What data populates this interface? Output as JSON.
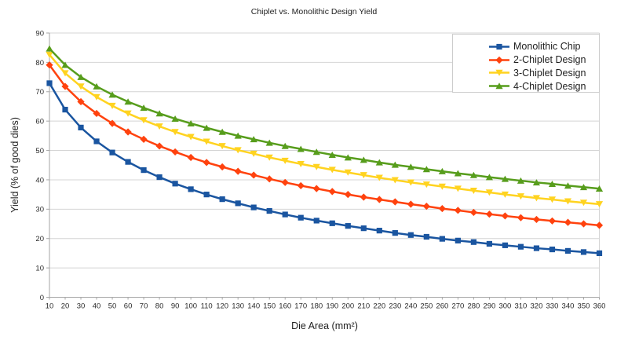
{
  "chart_data": {
    "type": "line",
    "title": "Chiplet vs. Monolithic Design Yield",
    "xlabel": "Die Area (mm²)",
    "ylabel": "Yield (% of good dies)",
    "x": [
      10,
      20,
      30,
      40,
      50,
      60,
      70,
      80,
      90,
      100,
      110,
      120,
      130,
      140,
      150,
      160,
      170,
      180,
      190,
      200,
      210,
      220,
      230,
      240,
      250,
      260,
      270,
      280,
      290,
      300,
      310,
      320,
      330,
      340,
      350,
      360
    ],
    "ylim": [
      0,
      90
    ],
    "ytick_step": 10,
    "grid": "horizontal",
    "legend_position": "top-right-inside",
    "series": [
      {
        "name": "Monolithic Chip",
        "color": "#1A55A0",
        "marker": "square",
        "values": [
          72.9,
          63.9,
          57.8,
          53.1,
          49.3,
          46.1,
          43.3,
          40.9,
          38.7,
          36.8,
          35.0,
          33.4,
          32.0,
          30.6,
          29.4,
          28.2,
          27.1,
          26.1,
          25.2,
          24.3,
          23.5,
          22.7,
          21.9,
          21.2,
          20.6,
          19.9,
          19.3,
          18.8,
          18.2,
          17.7,
          17.2,
          16.7,
          16.3,
          15.8,
          15.4,
          15.0
        ]
      },
      {
        "name": "2-Chiplet Design",
        "color": "#FF420E",
        "marker": "diamond",
        "values": [
          79.1,
          71.8,
          66.6,
          62.6,
          59.2,
          56.3,
          53.8,
          51.5,
          49.5,
          47.6,
          45.9,
          44.4,
          42.9,
          41.6,
          40.3,
          39.1,
          38.0,
          37.0,
          36.0,
          35.0,
          34.1,
          33.3,
          32.5,
          31.7,
          31.0,
          30.2,
          29.6,
          28.9,
          28.3,
          27.7,
          27.1,
          26.5,
          26.0,
          25.5,
          25.0,
          24.5
        ]
      },
      {
        "name": "3-Chiplet Design",
        "color": "#FFD320",
        "marker": "triangle-down",
        "values": [
          82.6,
          76.3,
          71.8,
          68.2,
          65.2,
          62.6,
          60.3,
          58.2,
          56.3,
          54.6,
          53.0,
          51.5,
          50.1,
          48.9,
          47.6,
          46.5,
          45.4,
          44.4,
          43.4,
          42.5,
          41.6,
          40.7,
          39.9,
          39.1,
          38.4,
          37.7,
          37.0,
          36.3,
          35.7,
          35.0,
          34.4,
          33.8,
          33.3,
          32.7,
          32.2,
          31.7
        ]
      },
      {
        "name": "4-Chiplet Design",
        "color": "#579D1C",
        "marker": "triangle-up",
        "values": [
          84.7,
          79.1,
          75.0,
          71.8,
          69.0,
          66.6,
          64.5,
          62.6,
          60.8,
          59.2,
          57.7,
          56.3,
          55.0,
          53.8,
          52.6,
          51.5,
          50.5,
          49.5,
          48.5,
          47.6,
          46.8,
          45.9,
          45.1,
          44.4,
          43.6,
          42.9,
          42.2,
          41.6,
          40.9,
          40.3,
          39.7,
          39.1,
          38.6,
          38.0,
          37.5,
          37.0
        ]
      }
    ],
    "style": {
      "grid_color": "#d4d4d4",
      "axis_color": "#a6a6a6",
      "tick_text_color": "#2b2b2b",
      "legend_border_color": "#cccccc",
      "background_color": "#ffffff"
    }
  }
}
